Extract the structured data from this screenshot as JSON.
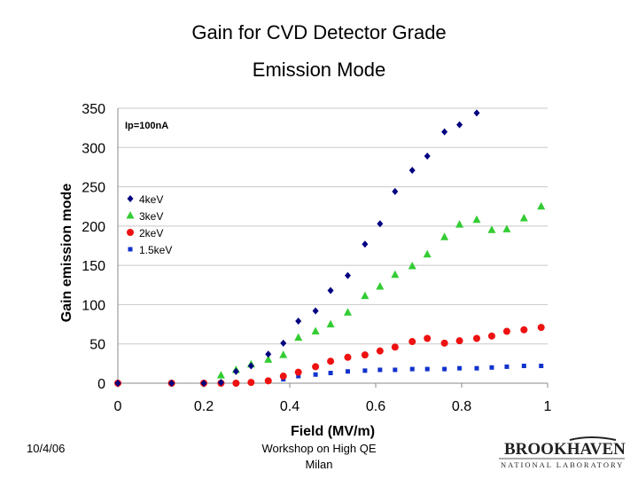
{
  "slide": {
    "title_line1": "Gain for CVD Detector Grade",
    "title_line2": "Emission Mode",
    "footer_date": "10/4/06",
    "footer_venue_line1": "Workshop on High QE",
    "footer_venue_line2": "Milan",
    "logo_text_main": "BROOKHAVEN",
    "logo_text_sub": "NATIONAL LABORATORY"
  },
  "chart_data": {
    "type": "scatter",
    "title": "",
    "xlabel": "Field (MV/m)",
    "ylabel": "Gain emission mode",
    "xlim": [
      0,
      1
    ],
    "ylim": [
      0,
      350
    ],
    "xticks": [
      "0",
      "0.2",
      "0.4",
      "0.6",
      "0.8",
      "1"
    ],
    "yticks": [
      "0",
      "50",
      "100",
      "150",
      "200",
      "250",
      "300",
      "350"
    ],
    "grid": "horizontal",
    "legend_position": "left-middle",
    "annotation": "Ip=100nA",
    "series": [
      {
        "name": "4keV",
        "marker": "diamond",
        "color": "#000080",
        "points": [
          [
            0.0,
            0
          ],
          [
            0.125,
            0
          ],
          [
            0.2,
            0
          ],
          [
            0.24,
            1
          ],
          [
            0.275,
            15
          ],
          [
            0.31,
            22
          ],
          [
            0.35,
            37
          ],
          [
            0.385,
            51
          ],
          [
            0.42,
            79
          ],
          [
            0.46,
            92
          ],
          [
            0.495,
            118
          ],
          [
            0.535,
            137
          ],
          [
            0.575,
            177
          ],
          [
            0.61,
            203
          ],
          [
            0.645,
            244
          ],
          [
            0.685,
            271
          ],
          [
            0.72,
            289
          ],
          [
            0.76,
            320
          ],
          [
            0.795,
            329
          ],
          [
            0.835,
            344
          ]
        ]
      },
      {
        "name": "3keV",
        "marker": "triangle",
        "color": "#33cc33",
        "points": [
          [
            0.24,
            10
          ],
          [
            0.275,
            17
          ],
          [
            0.31,
            24
          ],
          [
            0.35,
            30
          ],
          [
            0.385,
            36
          ],
          [
            0.42,
            58
          ],
          [
            0.46,
            66
          ],
          [
            0.495,
            75
          ],
          [
            0.535,
            90
          ],
          [
            0.575,
            111
          ],
          [
            0.61,
            123
          ],
          [
            0.645,
            138
          ],
          [
            0.685,
            149
          ],
          [
            0.72,
            164
          ],
          [
            0.76,
            186
          ],
          [
            0.795,
            202
          ],
          [
            0.835,
            208
          ],
          [
            0.87,
            195
          ],
          [
            0.905,
            196
          ],
          [
            0.945,
            210
          ],
          [
            0.985,
            225
          ]
        ]
      },
      {
        "name": "2keV",
        "marker": "circle",
        "color": "#ee1111",
        "points": [
          [
            0.0,
            0
          ],
          [
            0.125,
            0
          ],
          [
            0.2,
            0
          ],
          [
            0.24,
            0
          ],
          [
            0.275,
            0
          ],
          [
            0.31,
            1
          ],
          [
            0.35,
            3
          ],
          [
            0.385,
            9
          ],
          [
            0.42,
            14
          ],
          [
            0.46,
            21
          ],
          [
            0.495,
            28
          ],
          [
            0.535,
            33
          ],
          [
            0.575,
            36
          ],
          [
            0.61,
            41
          ],
          [
            0.645,
            46
          ],
          [
            0.685,
            53
          ],
          [
            0.72,
            57
          ],
          [
            0.76,
            51
          ],
          [
            0.795,
            54
          ],
          [
            0.835,
            57
          ],
          [
            0.87,
            60
          ],
          [
            0.905,
            66
          ],
          [
            0.945,
            68
          ],
          [
            0.985,
            71
          ]
        ]
      },
      {
        "name": "1.5keV",
        "marker": "square",
        "color": "#1133cc",
        "points": [
          [
            0.0,
            0
          ],
          [
            0.125,
            0
          ],
          [
            0.2,
            0
          ],
          [
            0.24,
            0
          ],
          [
            0.275,
            0
          ],
          [
            0.31,
            1
          ],
          [
            0.35,
            3
          ],
          [
            0.385,
            5
          ],
          [
            0.42,
            9
          ],
          [
            0.46,
            11
          ],
          [
            0.495,
            13
          ],
          [
            0.535,
            15
          ],
          [
            0.575,
            16
          ],
          [
            0.61,
            17
          ],
          [
            0.645,
            17
          ],
          [
            0.685,
            18
          ],
          [
            0.72,
            18
          ],
          [
            0.76,
            18
          ],
          [
            0.795,
            19
          ],
          [
            0.835,
            19
          ],
          [
            0.87,
            20
          ],
          [
            0.905,
            21
          ],
          [
            0.945,
            22
          ],
          [
            0.985,
            22
          ]
        ]
      }
    ]
  }
}
